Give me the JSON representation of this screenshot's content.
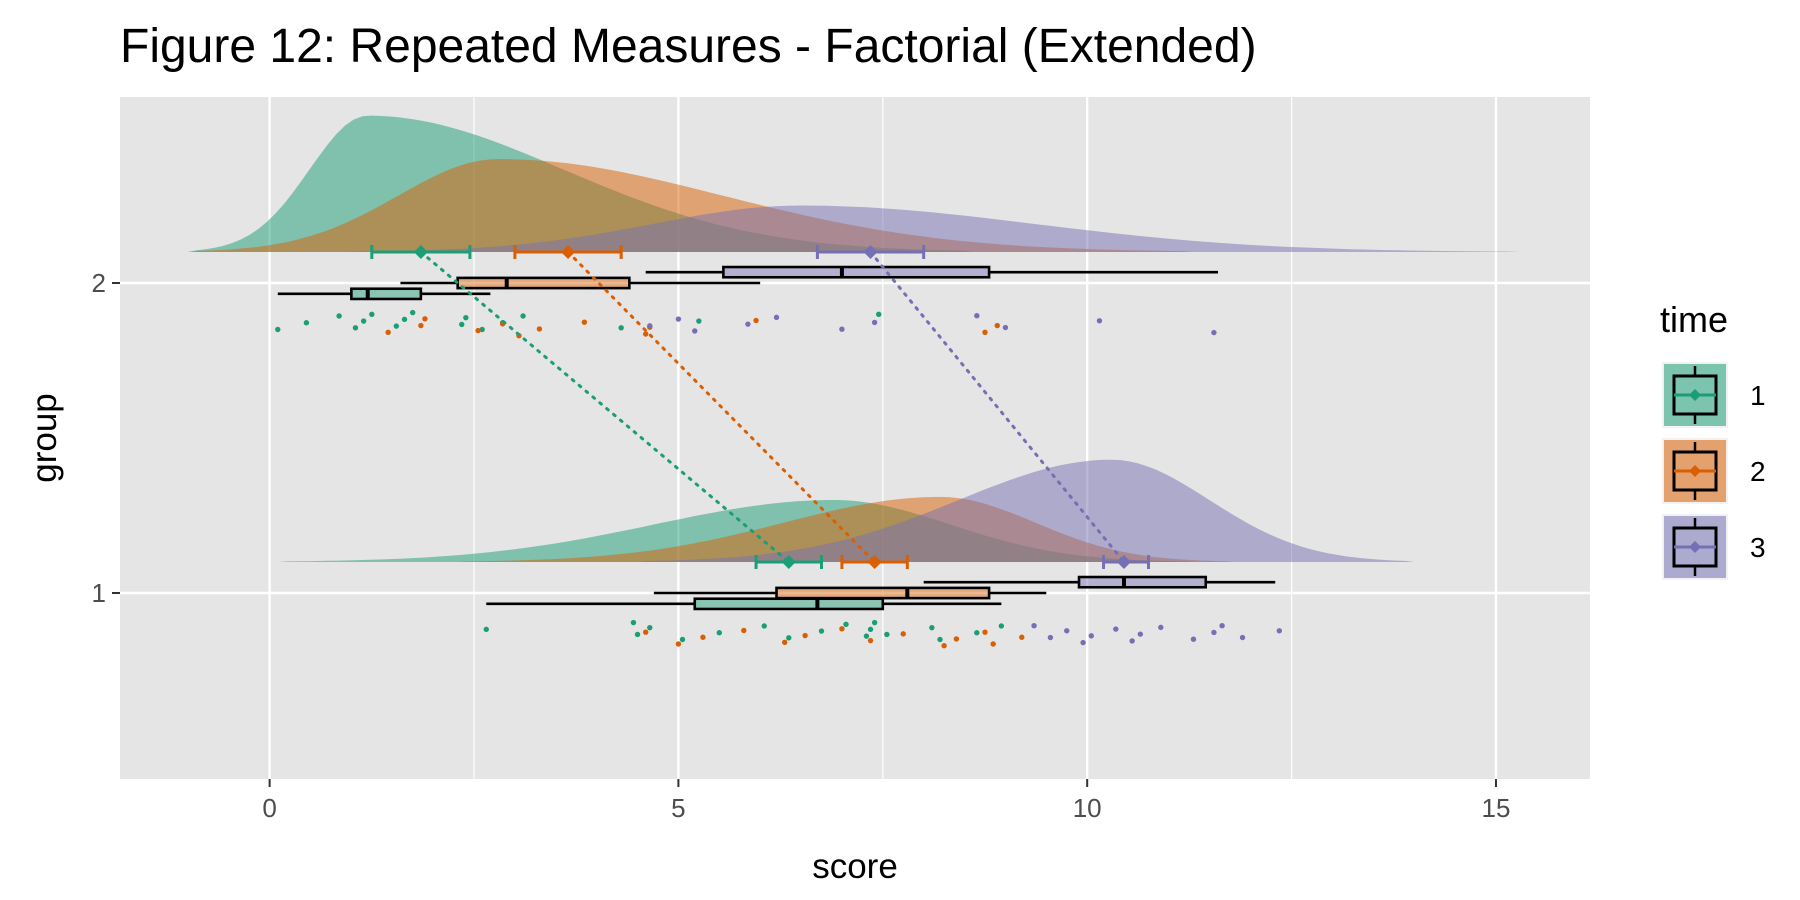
{
  "chart_data": {
    "type": "raincloud",
    "title": "Figure 12: Repeated Measures - Factorial (Extended)",
    "xlabel": "score",
    "ylabel": "group",
    "xlim": [
      -1.83,
      16.15
    ],
    "ylim": [
      0.4,
      2.6
    ],
    "x_ticks": [
      0,
      5,
      10,
      15
    ],
    "y_categories": [
      "1",
      "2"
    ],
    "grid": true,
    "legend": {
      "title": "time",
      "position": "right",
      "entries": [
        "1",
        "2",
        "3"
      ]
    },
    "colors": {
      "1": "#1b9e77",
      "2": "#d95f02",
      "3": "#7570b3"
    },
    "series": [
      {
        "group": "2",
        "time": "1",
        "density": {
          "min": -1.0,
          "max": 8.6,
          "mode": 1.2,
          "peak_height": 0.44
        },
        "box": {
          "whisker_low": 0.1,
          "q1": 1.0,
          "median": 1.2,
          "q3": 1.85,
          "whisker_high": 2.7
        },
        "mean": 1.85,
        "ci": [
          1.25,
          2.45
        ],
        "points": [
          0.1,
          0.45,
          0.85,
          1.05,
          1.15,
          1.25,
          1.55,
          1.65,
          1.75,
          2.35,
          2.4,
          2.6,
          2.85,
          3.1,
          4.3,
          5.25,
          7.45
        ]
      },
      {
        "group": "2",
        "time": "2",
        "density": {
          "min": -1.0,
          "max": 11.3,
          "mode": 2.8,
          "peak_height": 0.3
        },
        "box": {
          "whisker_low": 1.6,
          "q1": 2.3,
          "median": 2.9,
          "q3": 4.4,
          "whisker_high": 6.0
        },
        "mean": 3.65,
        "ci": [
          3.0,
          4.3
        ],
        "points": [
          1.45,
          1.85,
          1.9,
          2.55,
          2.85,
          3.05,
          3.3,
          3.85,
          4.6,
          4.65,
          5.95,
          8.75,
          8.9
        ]
      },
      {
        "group": "2",
        "time": "3",
        "density": {
          "min": 0.9,
          "max": 15.3,
          "mode": 6.5,
          "peak_height": 0.15
        },
        "box": {
          "whisker_low": 4.6,
          "q1": 5.55,
          "median": 7.0,
          "q3": 8.8,
          "whisker_high": 11.6
        },
        "mean": 7.35,
        "ci": [
          6.7,
          8.0
        ],
        "points": [
          4.65,
          5.0,
          5.2,
          5.85,
          6.2,
          7.0,
          7.4,
          8.65,
          9.0,
          10.15,
          11.55
        ]
      },
      {
        "group": "1",
        "time": "1",
        "density": {
          "min": 0.1,
          "max": 11.3,
          "mode": 6.9,
          "peak_height": 0.2
        },
        "box": {
          "whisker_low": 2.65,
          "q1": 5.2,
          "median": 6.7,
          "q3": 7.5,
          "whisker_high": 8.95
        },
        "mean": 6.35,
        "ci": [
          5.95,
          6.75
        ],
        "points": [
          2.65,
          4.45,
          4.5,
          4.65,
          5.05,
          5.5,
          6.05,
          6.35,
          6.75,
          7.05,
          7.3,
          7.35,
          7.4,
          7.55,
          8.1,
          8.2,
          8.65,
          8.95
        ]
      },
      {
        "group": "1",
        "time": "2",
        "density": {
          "min": 2.3,
          "max": 11.8,
          "mode": 8.2,
          "peak_height": 0.21
        },
        "box": {
          "whisker_low": 4.7,
          "q1": 6.2,
          "median": 7.8,
          "q3": 8.8,
          "whisker_high": 9.5
        },
        "mean": 7.4,
        "ci": [
          7.0,
          7.8
        ],
        "points": [
          4.6,
          5.0,
          5.3,
          5.8,
          6.3,
          6.55,
          7.0,
          7.35,
          7.75,
          8.25,
          8.4,
          8.75,
          8.85,
          9.2
        ]
      },
      {
        "group": "1",
        "time": "3",
        "density": {
          "min": 4.5,
          "max": 14.0,
          "mode": 10.3,
          "peak_height": 0.33
        },
        "box": {
          "whisker_low": 8.0,
          "q1": 9.9,
          "median": 10.45,
          "q3": 11.45,
          "whisker_high": 12.3
        },
        "mean": 10.45,
        "ci": [
          10.2,
          10.75
        ],
        "points": [
          9.35,
          9.55,
          9.75,
          9.95,
          10.05,
          10.35,
          10.55,
          10.65,
          10.9,
          11.3,
          11.55,
          11.65,
          11.9,
          12.35
        ]
      }
    ]
  }
}
